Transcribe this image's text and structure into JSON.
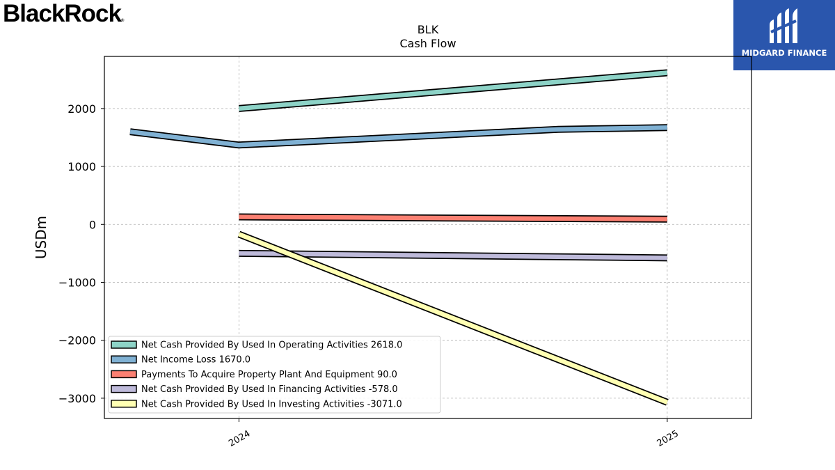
{
  "brand": {
    "name": "BlackRock",
    "mark": "®"
  },
  "partner": {
    "name": "MIDGARD FINANCE",
    "color": "#2a56ad"
  },
  "chart_data": {
    "type": "line",
    "title": "BLK",
    "subtitle": "Cash Flow",
    "ylabel": "USDm",
    "xlabel": "",
    "x_ticks": [
      "2024",
      "2025"
    ],
    "y_ticks": [
      2000,
      1000,
      0,
      -1000,
      -2000,
      -3000
    ],
    "y_tick_labels": [
      "2000",
      "1000",
      "0",
      "−1000",
      "−2000",
      "−3000"
    ],
    "xlim": [
      "2023-09-08",
      "2025-03-14"
    ],
    "ylim": [
      -3350,
      2900
    ],
    "grid": true,
    "legend_position": "lower-left",
    "series": [
      {
        "name": "Net Cash Provided By Used In Operating Activities",
        "legend_value": "2618.0",
        "color": "#8dd3c7",
        "points": [
          [
            "2024-01-01",
            2000
          ],
          [
            "2025-01-01",
            2618
          ]
        ]
      },
      {
        "name": "Net Income Loss",
        "legend_value": "1670.0",
        "color": "#80b1d3",
        "points": [
          [
            "2023-09-30",
            1600
          ],
          [
            "2024-01-01",
            1370
          ],
          [
            "2024-09-30",
            1640
          ],
          [
            "2025-01-01",
            1670
          ]
        ]
      },
      {
        "name": "Payments To Acquire Property Plant And Equipment",
        "legend_value": "90.0",
        "color": "#fb8072",
        "points": [
          [
            "2024-01-01",
            130
          ],
          [
            "2025-01-01",
            90
          ]
        ]
      },
      {
        "name": "Net Cash Provided By Used In Financing Activities",
        "legend_value": "-578.0",
        "color": "#bebada",
        "points": [
          [
            "2024-01-01",
            -500
          ],
          [
            "2025-01-01",
            -578
          ]
        ]
      },
      {
        "name": "Net Cash Provided By Used In Investing Activities",
        "legend_value": "-3071.0",
        "color": "#ffffb3",
        "points": [
          [
            "2024-01-01",
            -170
          ],
          [
            "2025-01-01",
            -3071
          ]
        ]
      }
    ]
  }
}
